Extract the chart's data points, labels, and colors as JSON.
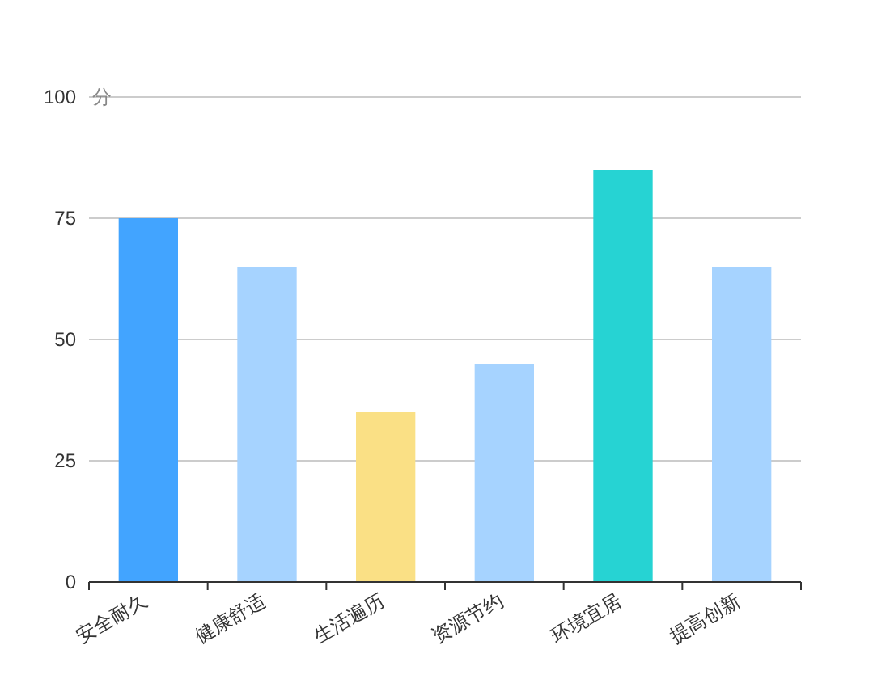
{
  "chart_data": {
    "type": "bar",
    "ylabel": "分",
    "categories": [
      "安全耐久",
      "健康舒适",
      "生活遍历",
      "资源节约",
      "环境宜居",
      "提高创新"
    ],
    "values": [
      75,
      65,
      35,
      45,
      85,
      65
    ],
    "colors": [
      "#42a4ff",
      "#a6d3ff",
      "#fae085",
      "#a6d3ff",
      "#26d3d3",
      "#a6d3ff"
    ],
    "ylim": [
      0,
      100
    ],
    "yticks": [
      0,
      25,
      50,
      75,
      100
    ],
    "grid": "y"
  }
}
